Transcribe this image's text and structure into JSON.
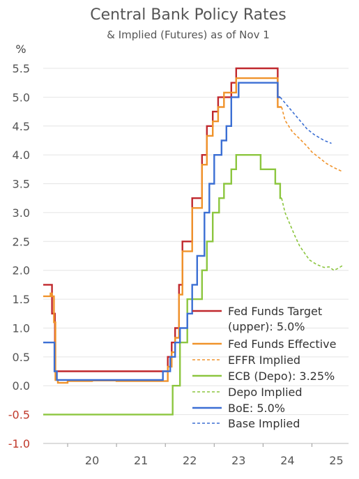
{
  "chart_data": {
    "type": "line",
    "title": "Central Bank Policy Rates",
    "subtitle": "& Implied (Futures) as of Nov 1",
    "ylabel": "%",
    "xlabel": "",
    "ylim": [
      -1.0,
      5.5
    ],
    "xlim": [
      2019.5,
      2025.75
    ],
    "yticks": [
      "5.5",
      "5.0",
      "4.5",
      "4.0",
      "3.5",
      "3.0",
      "2.5",
      "2.0",
      "1.5",
      "1.0",
      "0.5",
      "0.0",
      "-0.5",
      "-1.0"
    ],
    "xticks": [
      "20",
      "21",
      "22",
      "23",
      "24",
      "25"
    ],
    "grid": "horizontal",
    "legend_position": "bottom-right",
    "series": [
      {
        "name": "Fed Funds Target (upper): 5.0%",
        "legend": [
          "Fed Funds Target",
          "(upper): 5.0%"
        ],
        "color": "#c0282d",
        "dash": "solid",
        "step": true,
        "x": [
          2019.5,
          2019.67,
          2019.68,
          2019.73,
          2019.74,
          2021.7,
          2022.0,
          2022.05,
          2022.13,
          2022.2,
          2022.28,
          2022.35,
          2022.45,
          2022.55,
          2022.65,
          2022.75,
          2022.85,
          2022.97,
          2023.08,
          2023.2,
          2023.35,
          2023.45,
          2023.6,
          2024.0,
          2024.2,
          2024.3,
          2024.35
        ],
        "y": [
          1.75,
          1.75,
          1.25,
          1.25,
          0.25,
          0.25,
          0.25,
          0.5,
          0.75,
          1.0,
          1.75,
          2.5,
          2.5,
          3.25,
          3.25,
          4.0,
          4.5,
          4.75,
          5.0,
          5.0,
          5.25,
          5.5,
          5.5,
          5.5,
          5.5,
          5.0,
          5.0
        ]
      },
      {
        "name": "Fed Funds Effective",
        "color": "#f0932b",
        "dash": "solid",
        "step": true,
        "x": [
          2019.5,
          2019.6,
          2019.65,
          2019.68,
          2019.72,
          2019.75,
          2019.8,
          2020.0,
          2020.5,
          2021.0,
          2021.5,
          2021.7,
          2022.0,
          2022.05,
          2022.13,
          2022.2,
          2022.28,
          2022.35,
          2022.45,
          2022.55,
          2022.65,
          2022.75,
          2022.85,
          2022.97,
          2023.08,
          2023.2,
          2023.35,
          2023.45,
          2023.6,
          2024.0,
          2024.2,
          2024.3,
          2024.38
        ],
        "y": [
          1.55,
          1.55,
          1.6,
          1.55,
          1.1,
          0.1,
          0.05,
          0.08,
          0.09,
          0.08,
          0.08,
          0.08,
          0.08,
          0.33,
          0.58,
          0.83,
          1.58,
          2.33,
          2.33,
          3.08,
          3.08,
          3.83,
          4.33,
          4.58,
          4.83,
          5.08,
          5.08,
          5.33,
          5.33,
          5.33,
          5.33,
          4.83,
          4.83
        ]
      },
      {
        "name": "EFFR Implied",
        "color": "#f0932b",
        "dash": "dashed",
        "x": [
          2024.38,
          2024.45,
          2024.6,
          2024.75,
          2024.9,
          2025.0,
          2025.15,
          2025.3,
          2025.45,
          2025.6
        ],
        "y": [
          4.83,
          4.6,
          4.4,
          4.28,
          4.15,
          4.05,
          3.95,
          3.85,
          3.78,
          3.72
        ]
      },
      {
        "name": "ECB (Depo): 3.25%",
        "color": "#8cc63f",
        "dash": "solid",
        "step": true,
        "x": [
          2019.5,
          2021.0,
          2022.0,
          2022.05,
          2022.15,
          2022.3,
          2022.45,
          2022.6,
          2022.75,
          2022.85,
          2022.97,
          2023.1,
          2023.2,
          2023.35,
          2023.45,
          2023.7,
          2023.95,
          2024.1,
          2024.25,
          2024.35,
          2024.38
        ],
        "y": [
          -0.5,
          -0.5,
          -0.5,
          -0.5,
          0.0,
          0.75,
          1.5,
          1.5,
          2.0,
          2.5,
          3.0,
          3.25,
          3.5,
          3.75,
          4.0,
          4.0,
          3.75,
          3.75,
          3.5,
          3.25,
          3.25
        ]
      },
      {
        "name": "Depo Implied",
        "color": "#8cc63f",
        "dash": "dashed",
        "x": [
          2024.38,
          2024.45,
          2024.55,
          2024.65,
          2024.75,
          2024.85,
          2024.95,
          2025.1,
          2025.25,
          2025.35,
          2025.45,
          2025.55,
          2025.62
        ],
        "y": [
          3.25,
          3.0,
          2.8,
          2.6,
          2.42,
          2.3,
          2.18,
          2.1,
          2.05,
          2.06,
          2.0,
          2.04,
          2.08
        ]
      },
      {
        "name": "BoE: 5.0%",
        "color": "#3b6fd4",
        "dash": "solid",
        "step": true,
        "x": [
          2019.5,
          2019.7,
          2019.73,
          2019.78,
          2021.0,
          2021.5,
          2021.95,
          2022.1,
          2022.2,
          2022.3,
          2022.45,
          2022.55,
          2022.65,
          2022.8,
          2022.9,
          2023.0,
          2023.15,
          2023.25,
          2023.35,
          2023.5,
          2023.65,
          2024.0,
          2024.2,
          2024.3,
          2024.35
        ],
        "y": [
          0.75,
          0.75,
          0.25,
          0.1,
          0.1,
          0.1,
          0.25,
          0.5,
          0.75,
          1.0,
          1.25,
          1.75,
          2.25,
          3.0,
          3.5,
          4.0,
          4.25,
          4.5,
          5.0,
          5.25,
          5.25,
          5.25,
          5.25,
          5.0,
          5.0
        ]
      },
      {
        "name": "Base Implied",
        "color": "#3b6fd4",
        "dash": "dashed",
        "x": [
          2024.35,
          2024.5,
          2024.6,
          2024.75,
          2024.9,
          2025.05,
          2025.25,
          2025.4
        ],
        "y": [
          5.0,
          4.85,
          4.75,
          4.6,
          4.45,
          4.35,
          4.25,
          4.2
        ]
      }
    ]
  }
}
